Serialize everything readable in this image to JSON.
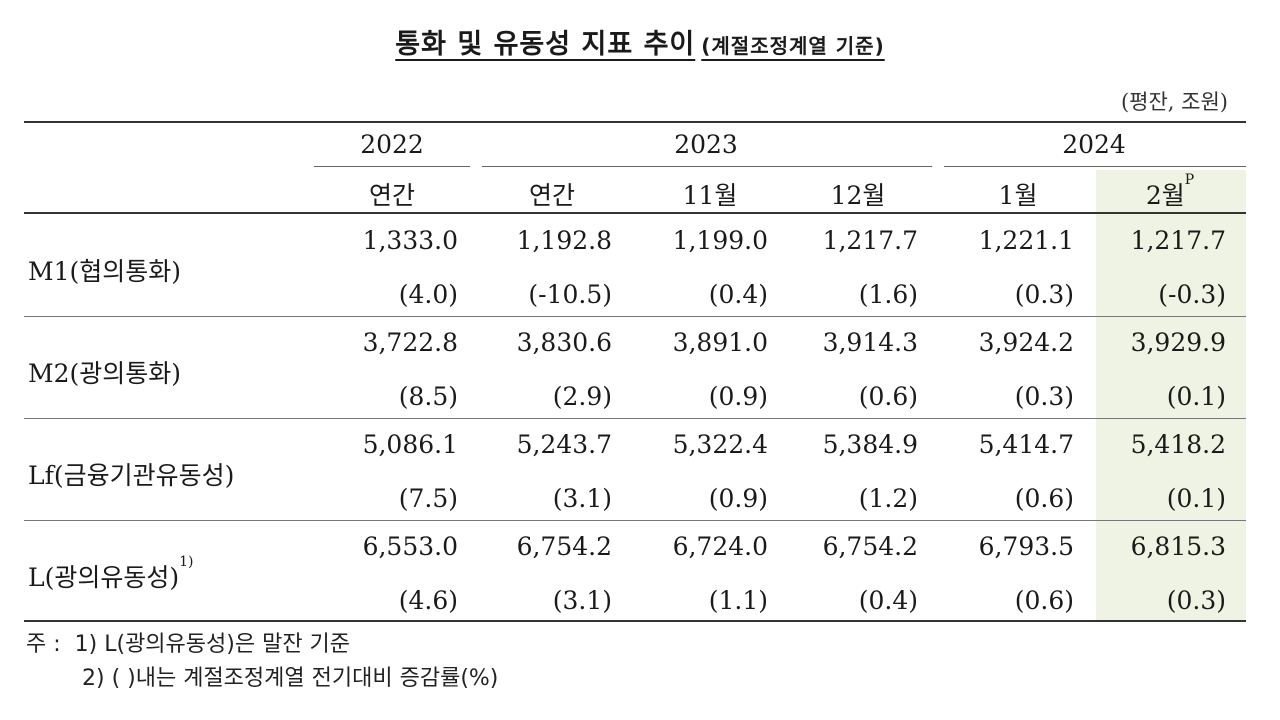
{
  "title": "통화 및 유동성 지표 추이",
  "title_sub": "(계절조정계열 기준)",
  "unit": "(평잔, 조원)",
  "years": [
    "2022",
    "2023",
    "2024"
  ],
  "columns": [
    "연간",
    "연간",
    "11월",
    "12월",
    "1월",
    "2월"
  ],
  "last_column_sup": "P",
  "rows": [
    {
      "label": "M1(협의통화)",
      "sup": "",
      "values": [
        "1,333.0",
        "1,192.8",
        "1,199.0",
        "1,217.7",
        "1,221.1",
        "1,217.7"
      ],
      "changes": [
        "(4.0)",
        "(-10.5)",
        "(0.4)",
        "(1.6)",
        "(0.3)",
        "(-0.3)"
      ]
    },
    {
      "label": "M2(광의통화)",
      "sup": "",
      "values": [
        "3,722.8",
        "3,830.6",
        "3,891.0",
        "3,914.3",
        "3,924.2",
        "3,929.9"
      ],
      "changes": [
        "(8.5)",
        "(2.9)",
        "(0.9)",
        "(0.6)",
        "(0.3)",
        "(0.1)"
      ]
    },
    {
      "label": "Lf(금융기관유동성)",
      "sup": "",
      "values": [
        "5,086.1",
        "5,243.7",
        "5,322.4",
        "5,384.9",
        "5,414.7",
        "5,418.2"
      ],
      "changes": [
        "(7.5)",
        "(3.1)",
        "(0.9)",
        "(1.2)",
        "(0.6)",
        "(0.1)"
      ]
    },
    {
      "label": "L(광의유동성)",
      "sup": "1)",
      "values": [
        "6,553.0",
        "6,754.2",
        "6,724.0",
        "6,754.2",
        "6,793.5",
        "6,815.3"
      ],
      "changes": [
        "(4.6)",
        "(3.1)",
        "(1.1)",
        "(0.4)",
        "(0.6)",
        "(0.3)"
      ]
    }
  ],
  "notes": {
    "prefix": "주 :",
    "items": [
      "1) L(광의유동성)은 말잔 기준",
      "2) (     )내는 계절조정계열 전기대비 증감률(%)"
    ]
  }
}
